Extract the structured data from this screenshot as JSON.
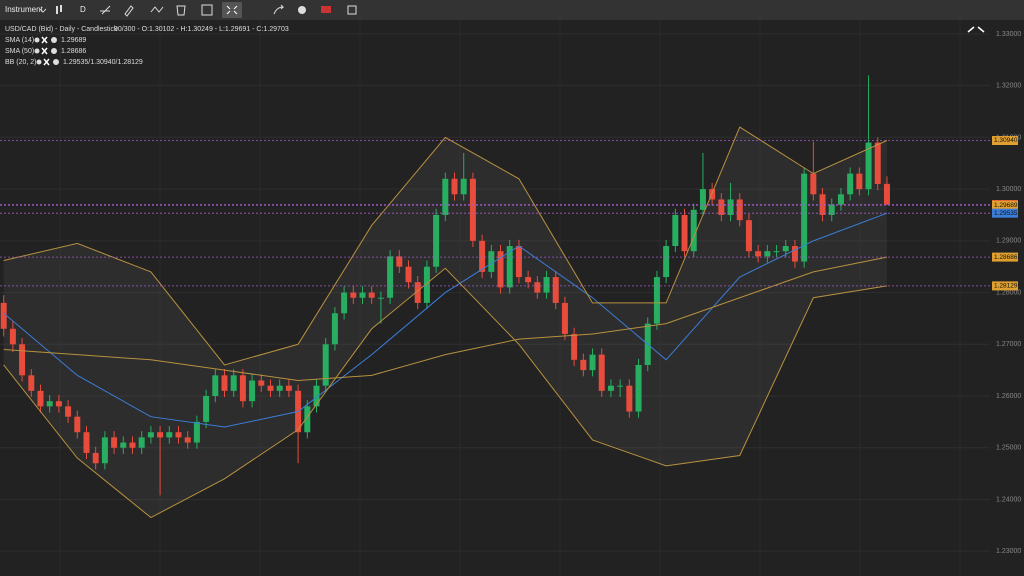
{
  "toolbar": {
    "instrument": "Instrument",
    "interval": "D"
  },
  "chart_data": {
    "type": "candlestick",
    "title": "USD/CAD (Bid) - Daily - Candlestick",
    "subtitle": "90/300 - O:1.30102 - H:1.30249 - L:1.29691 - C:1.29703",
    "legend": [
      {
        "name": "SMA (14)",
        "value_label": "1.29689"
      },
      {
        "name": "SMA (50)",
        "value_label": "1.28686"
      },
      {
        "name": "BB (20, 2)",
        "value_label": "1.29535/1.30940/1.28129"
      }
    ],
    "up_color": "#27ae60",
    "down_color": "#e74c3c",
    "xlim": [
      -0.4,
      107.2
    ],
    "ylim": [
      1.2252,
      1.3327
    ],
    "yticks": [
      {
        "value": 1.23,
        "label": "1.23000"
      },
      {
        "value": 1.24,
        "label": "1.24000"
      },
      {
        "value": 1.25,
        "label": "1.25000"
      },
      {
        "value": 1.26,
        "label": "1.26000"
      },
      {
        "value": 1.27,
        "label": "1.27000"
      },
      {
        "value": 1.28,
        "label": "1.28000"
      },
      {
        "value": 1.29,
        "label": "1.29000"
      },
      {
        "value": 1.3,
        "label": "1.30000"
      },
      {
        "value": 1.31,
        "label": "1.31000"
      },
      {
        "value": 1.32,
        "label": "1.32000"
      },
      {
        "value": 1.33,
        "label": "1.33000"
      }
    ],
    "grid": true,
    "open": [
      1.278,
      1.273,
      1.27,
      1.264,
      1.261,
      1.258,
      1.259,
      1.258,
      1.256,
      1.253,
      1.249,
      1.247,
      1.252,
      1.25,
      1.251,
      1.25,
      1.252,
      1.253,
      1.252,
      1.253,
      1.252,
      1.251,
      1.255,
      1.26,
      1.264,
      1.261,
      1.264,
      1.259,
      1.263,
      1.262,
      1.261,
      1.262,
      1.261,
      1.253,
      1.258,
      1.262,
      1.27,
      1.276,
      1.28,
      1.279,
      1.28,
      1.279,
      1.279,
      1.287,
      1.285,
      1.282,
      1.278,
      1.285,
      1.295,
      1.302,
      1.299,
      1.302,
      1.29,
      1.284,
      1.288,
      1.281,
      1.289,
      1.283,
      1.282,
      1.28,
      1.283,
      1.278,
      1.272,
      1.267,
      1.265,
      1.268,
      1.261,
      1.262,
      1.262,
      1.257,
      1.266,
      1.274,
      1.283,
      1.289,
      1.295,
      1.288,
      1.296,
      1.3,
      1.298,
      1.295,
      1.298,
      1.294,
      1.288,
      1.287,
      1.288,
      1.288,
      1.289,
      1.286,
      1.303,
      1.299,
      1.295,
      1.297,
      1.299,
      1.303,
      1.3,
      1.309,
      1.30102
    ],
    "high": [
      1.2795,
      1.2745,
      1.2712,
      1.2652,
      1.2622,
      1.2602,
      1.2602,
      1.2592,
      1.2572,
      1.2542,
      1.2502,
      1.2532,
      1.2532,
      1.2522,
      1.2522,
      1.2532,
      1.2542,
      1.2542,
      1.2542,
      1.2542,
      1.2532,
      1.2562,
      1.2612,
      1.2652,
      1.2652,
      1.2652,
      1.2652,
      1.2642,
      1.2642,
      1.2632,
      1.2632,
      1.2632,
      1.2622,
      1.2592,
      1.2632,
      1.2712,
      1.2772,
      1.2812,
      1.2812,
      1.2812,
      1.2812,
      1.2802,
      1.2882,
      1.2882,
      1.2862,
      1.2832,
      1.2862,
      1.2962,
      1.3032,
      1.3032,
      1.307,
      1.3032,
      1.2912,
      1.2892,
      1.2892,
      1.2902,
      1.2902,
      1.2842,
      1.2832,
      1.2842,
      1.2842,
      1.2792,
      1.2732,
      1.2682,
      1.2692,
      1.2692,
      1.2632,
      1.2632,
      1.2632,
      1.2672,
      1.2752,
      1.2842,
      1.2902,
      1.2962,
      1.2962,
      1.2972,
      1.307,
      1.3012,
      1.2992,
      1.3012,
      1.2992,
      1.2952,
      1.2892,
      1.2892,
      1.2892,
      1.2902,
      1.2902,
      1.3042,
      1.3092,
      1.3002,
      1.2982,
      1.3002,
      1.3042,
      1.3042,
      1.322,
      1.31,
      1.30249
    ],
    "low": [
      1.2715,
      1.2685,
      1.2628,
      1.2598,
      1.2568,
      1.2568,
      1.2568,
      1.2548,
      1.2518,
      1.2478,
      1.2458,
      1.2458,
      1.2488,
      1.2488,
      1.2488,
      1.2488,
      1.2508,
      1.2408,
      1.2508,
      1.2508,
      1.2498,
      1.2498,
      1.2538,
      1.2588,
      1.2598,
      1.2598,
      1.2578,
      1.2578,
      1.2608,
      1.2598,
      1.2598,
      1.2598,
      1.247,
      1.2518,
      1.2568,
      1.2608,
      1.2688,
      1.2748,
      1.2778,
      1.2778,
      1.2778,
      1.274,
      1.2778,
      1.2838,
      1.2808,
      1.2768,
      1.2768,
      1.2838,
      1.2938,
      1.2978,
      1.2978,
      1.2888,
      1.2828,
      1.2828,
      1.2798,
      1.2798,
      1.2818,
      1.2808,
      1.2788,
      1.2788,
      1.2768,
      1.2708,
      1.2658,
      1.2638,
      1.2638,
      1.2598,
      1.2598,
      1.2598,
      1.2558,
      1.2558,
      1.2648,
      1.2728,
      1.2818,
      1.2878,
      1.2868,
      1.2868,
      1.2948,
      1.2968,
      1.2938,
      1.2938,
      1.2928,
      1.2868,
      1.2858,
      1.2858,
      1.2868,
      1.2868,
      1.2848,
      1.2848,
      1.2978,
      1.2938,
      1.2938,
      1.2958,
      1.2978,
      1.2988,
      1.2988,
      1.2998,
      1.29691
    ],
    "close": [
      1.273,
      1.27,
      1.264,
      1.261,
      1.258,
      1.259,
      1.258,
      1.256,
      1.253,
      1.249,
      1.247,
      1.252,
      1.25,
      1.251,
      1.25,
      1.252,
      1.253,
      1.252,
      1.253,
      1.252,
      1.251,
      1.255,
      1.26,
      1.264,
      1.261,
      1.264,
      1.259,
      1.263,
      1.262,
      1.261,
      1.262,
      1.261,
      1.253,
      1.258,
      1.262,
      1.27,
      1.276,
      1.28,
      1.279,
      1.28,
      1.279,
      1.279,
      1.287,
      1.285,
      1.282,
      1.278,
      1.285,
      1.295,
      1.302,
      1.299,
      1.302,
      1.29,
      1.284,
      1.288,
      1.281,
      1.289,
      1.283,
      1.282,
      1.28,
      1.283,
      1.278,
      1.272,
      1.267,
      1.265,
      1.268,
      1.261,
      1.262,
      1.262,
      1.257,
      1.266,
      1.274,
      1.283,
      1.289,
      1.295,
      1.288,
      1.296,
      1.3,
      1.298,
      1.295,
      1.298,
      1.294,
      1.288,
      1.287,
      1.288,
      1.288,
      1.289,
      1.286,
      1.303,
      1.299,
      1.295,
      1.297,
      1.299,
      1.303,
      1.3,
      1.309,
      1.301,
      1.29703
    ],
    "overlays": [
      {
        "color": "#3b7dd8",
        "x": [
          0,
          8,
          16,
          24,
          32,
          40,
          48,
          56,
          64,
          72,
          80,
          88,
          96
        ],
        "values": [
          1.276,
          1.264,
          1.256,
          1.254,
          1.257,
          1.268,
          1.28,
          1.289,
          1.279,
          1.267,
          1.283,
          1.29,
          1.29535
        ]
      },
      {
        "color": "#b8913f",
        "x": [
          0,
          8,
          16,
          24,
          32,
          40,
          48,
          56,
          64,
          72,
          80,
          88,
          96
        ],
        "values": [
          1.269,
          1.268,
          1.267,
          1.265,
          1.263,
          1.264,
          1.268,
          1.271,
          1.272,
          1.274,
          1.279,
          1.284,
          1.28686
        ]
      },
      {
        "color": "#b8913f",
        "x": [
          0,
          8,
          16,
          24,
          32,
          40,
          48,
          56,
          64,
          72,
          80,
          88,
          96
        ],
        "values": [
          1.2862,
          1.2895,
          1.284,
          1.266,
          1.27,
          1.293,
          1.31,
          1.302,
          1.278,
          1.278,
          1.312,
          1.303,
          1.3094
        ]
      },
      {
        "color": "#b8913f",
        "x": [
          0,
          8,
          16,
          24,
          32,
          40,
          48,
          56,
          64,
          72,
          80,
          88,
          96
        ],
        "values": [
          1.266,
          1.248,
          1.2365,
          1.244,
          1.2535,
          1.273,
          1.2847,
          1.27,
          1.2515,
          1.2465,
          1.2485,
          1.279,
          1.28129
        ]
      }
    ],
    "price_labels": [
      {
        "value": 1.3094,
        "label": "1.30940",
        "color": "#e0a030"
      },
      {
        "value": 1.29703,
        "label": "1.29703",
        "color": "#e74c3c"
      },
      {
        "value": 1.29689,
        "label": "1.29689",
        "color": "#e0a030"
      },
      {
        "value": 1.29535,
        "label": "1.29535",
        "color": "#3b7dd8"
      },
      {
        "value": 1.28686,
        "label": "1.28686",
        "color": "#e0a030"
      },
      {
        "value": 1.28129,
        "label": "1.28129",
        "color": "#e0a030"
      }
    ]
  }
}
